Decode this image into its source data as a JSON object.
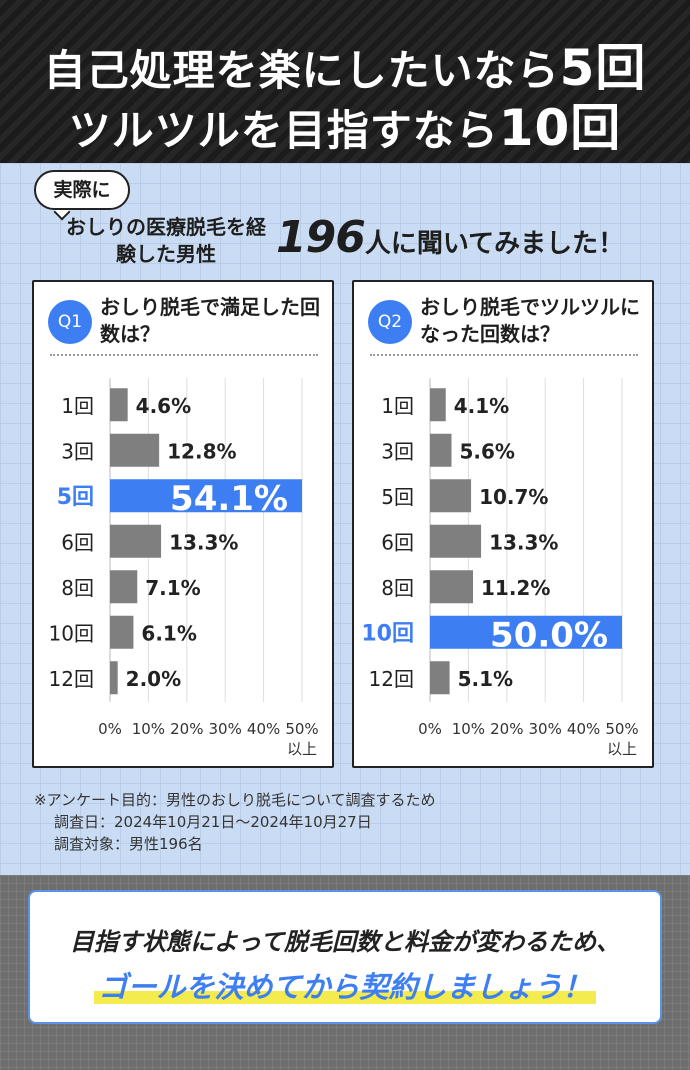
{
  "header": {
    "line1_main": "自己処理を楽にしたいなら",
    "line1_big": "5回",
    "line2_main": "ツルツルを目指すなら",
    "line2_big": "10回"
  },
  "intro": {
    "bubble": "実際に",
    "lead": "おしりの医療脱毛を経験した男性",
    "count": "196",
    "rest": "人に聞いてみました！"
  },
  "colors": {
    "header_bg": "#1f1f1f",
    "accent_blue": "#3d7ff3",
    "bar_gray": "#7f7f7f",
    "highlight_yellow": "#f4ec4e"
  },
  "chart_data": [
    {
      "type": "bar",
      "orientation": "horizontal",
      "badge": "Q1",
      "title": "おしり脱毛で満足した回数は？",
      "categories": [
        "1回",
        "3回",
        "5回",
        "6回",
        "8回",
        "10回",
        "12回"
      ],
      "values": [
        4.6,
        12.8,
        54.1,
        13.3,
        7.1,
        6.1,
        2.0
      ],
      "value_labels": [
        "4.6%",
        "12.8%",
        "54.1%",
        "13.3%",
        "7.1%",
        "6.1%",
        "2.0%"
      ],
      "highlight_index": 2,
      "xlim": [
        0,
        50
      ],
      "xticks": [
        "0%",
        "10%",
        "20%",
        "30%",
        "40%",
        "50%"
      ],
      "xtick_note": "以上",
      "grid": true
    },
    {
      "type": "bar",
      "orientation": "horizontal",
      "badge": "Q2",
      "title": "おしり脱毛でツルツルになった回数は？",
      "categories": [
        "1回",
        "3回",
        "5回",
        "6回",
        "8回",
        "10回",
        "12回"
      ],
      "values": [
        4.1,
        5.6,
        10.7,
        13.3,
        11.2,
        50.0,
        5.1
      ],
      "value_labels": [
        "4.1%",
        "5.6%",
        "10.7%",
        "13.3%",
        "11.2%",
        "50.0%",
        "5.1%"
      ],
      "highlight_index": 5,
      "xlim": [
        0,
        50
      ],
      "xticks": [
        "0%",
        "10%",
        "20%",
        "30%",
        "40%",
        "50%"
      ],
      "xtick_note": "以上",
      "grid": true
    }
  ],
  "notes": {
    "purpose": "※アンケート目的：男性のおしり脱毛について調査するため",
    "date": "調査日：2024年10月21日〜2024年10月27日",
    "target": "調査対象：男性196名"
  },
  "callout": {
    "line1": "目指す状態によって脱毛回数と料金が変わるため、",
    "line2": "ゴールを決めてから契約しましょう！"
  }
}
